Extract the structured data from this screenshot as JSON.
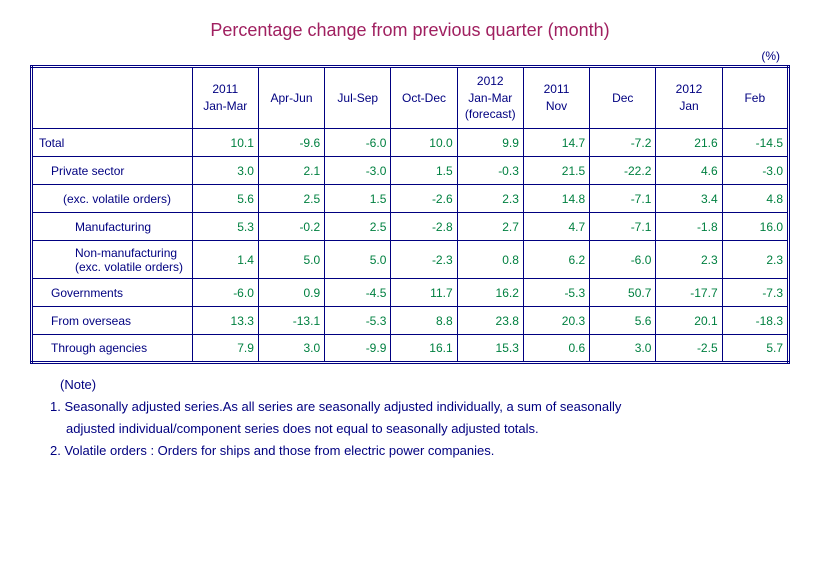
{
  "colors": {
    "title": "#a02060",
    "header_text": "#000080",
    "label_text": "#000080",
    "value_text": "#008040",
    "border": "#000080",
    "notes_text": "#000080"
  },
  "title": "Percentage change from previous quarter (month)",
  "unit_label": "(%)",
  "columns": [
    "2011\nJan-Mar",
    "Apr-Jun",
    "Jul-Sep",
    "Oct-Dec",
    "2012\nJan-Mar\n(forecast)",
    "2011\nNov",
    "Dec",
    "2012\nJan",
    "Feb"
  ],
  "rows": [
    {
      "label": "Total",
      "indent": 0,
      "values": [
        "10.1",
        "-9.6",
        "-6.0",
        "10.0",
        "9.9",
        "14.7",
        "-7.2",
        "21.6",
        "-14.5"
      ]
    },
    {
      "label": "Private sector",
      "indent": 1,
      "values": [
        "3.0",
        "2.1",
        "-3.0",
        "1.5",
        "-0.3",
        "21.5",
        "-22.2",
        "4.6",
        "-3.0"
      ]
    },
    {
      "label": "(exc. volatile orders)",
      "indent": 2,
      "values": [
        "5.6",
        "2.5",
        "1.5",
        "-2.6",
        "2.3",
        "14.8",
        "-7.1",
        "3.4",
        "4.8"
      ]
    },
    {
      "label": "Manufacturing",
      "indent": 3,
      "values": [
        "5.3",
        "-0.2",
        "2.5",
        "-2.8",
        "2.7",
        "4.7",
        "-7.1",
        "-1.8",
        "16.0"
      ]
    },
    {
      "label": "Non-manufacturing\n(exc. volatile orders)",
      "indent": 3,
      "values": [
        "1.4",
        "5.0",
        "5.0",
        "-2.3",
        "0.8",
        "6.2",
        "-6.0",
        "2.3",
        "2.3"
      ]
    },
    {
      "label": "Governments",
      "indent": 1,
      "values": [
        "-6.0",
        "0.9",
        "-4.5",
        "11.7",
        "16.2",
        "-5.3",
        "50.7",
        "-17.7",
        "-7.3"
      ]
    },
    {
      "label": "From overseas",
      "indent": 1,
      "values": [
        "13.3",
        "-13.1",
        "-5.3",
        "8.8",
        "23.8",
        "20.3",
        "5.6",
        "20.1",
        "-18.3"
      ]
    },
    {
      "label": "Through agencies",
      "indent": 1,
      "values": [
        "7.9",
        "3.0",
        "-9.9",
        "16.1",
        "15.3",
        "0.6",
        "3.0",
        "-2.5",
        "5.7"
      ]
    }
  ],
  "notes": {
    "head": "(Note)",
    "lines": [
      "1. Seasonally adjusted series.As all series are seasonally adjusted individually,  a sum of seasonally",
      "adjusted individual/component series does not equal to seasonally adjusted totals.",
      "2. Volatile orders : Orders for ships and those from electric power companies."
    ]
  }
}
